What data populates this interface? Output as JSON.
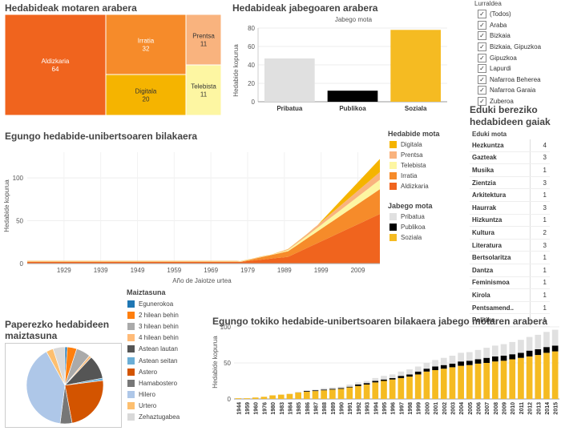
{
  "treemap": {
    "title": "Hedabideak motaren arabera",
    "cells": [
      {
        "label": "Aldizkaria",
        "value": 64,
        "color": "#f0641e"
      },
      {
        "label": "Irratia",
        "value": 32,
        "color": "#f68b2a"
      },
      {
        "label": "Digitala",
        "value": 20,
        "color": "#f5b400"
      },
      {
        "label": "Prentsa",
        "value": 11,
        "color": "#f9b37e"
      },
      {
        "label": "Telebista",
        "value": 11,
        "color": "#fdf6a2"
      }
    ]
  },
  "jabego_bar": {
    "title": "Hedabideak jabegoaren arabera",
    "subtitle": "Jabego mota",
    "ylabel": "Hedabide kopurua",
    "ylim": [
      0,
      80
    ],
    "ticks": [
      0,
      20,
      40,
      60,
      80
    ],
    "bars": [
      {
        "label": "Pribatua",
        "value": 47,
        "color": "#e0e0e0"
      },
      {
        "label": "Publikoa",
        "value": 12,
        "color": "#000000"
      },
      {
        "label": "Soziala",
        "value": 78,
        "color": "#f5bb22"
      }
    ]
  },
  "filter": {
    "title": "Lurraldea",
    "items": [
      "(Todos)",
      "Araba",
      "Bizkaia",
      "Bizkaia, Gipuzkoa",
      "Gipuzkoa",
      "Lapurdi",
      "Nafarroa Beherea",
      "Nafarroa Garaia",
      "Zuberoa"
    ],
    "check_mark": "✓"
  },
  "eduki": {
    "title_line1": "Eduki bereziko",
    "title_line2": "hedabideen gaiak",
    "column_header": "Eduki mota",
    "rows": [
      {
        "name": "Hezkuntza",
        "value": "4"
      },
      {
        "name": "Gazteak",
        "value": "3"
      },
      {
        "name": "Musika",
        "value": "1"
      },
      {
        "name": "Zientzia",
        "value": "3"
      },
      {
        "name": "Arkitektura",
        "value": "1"
      },
      {
        "name": "Haurrak",
        "value": "3"
      },
      {
        "name": "Hizkuntza",
        "value": "1"
      },
      {
        "name": "Kultura",
        "value": "2"
      },
      {
        "name": "Literatura",
        "value": "3"
      },
      {
        "name": "Bertsolaritza",
        "value": "1"
      },
      {
        "name": "Dantza",
        "value": "1"
      },
      {
        "name": "Feminismoa",
        "value": "1"
      },
      {
        "name": "Kirola",
        "value": "1"
      },
      {
        "name": "Pentsamend..",
        "value": "1"
      },
      {
        "name": "Politika",
        "value": "1"
      }
    ]
  },
  "evolution": {
    "title": "Egungo hedabide-unibertsoaren bilakaera",
    "ylabel": "Hedabide kopurua",
    "xlabel": "Año de Jaiotze urtea",
    "xticks": [
      "1929",
      "1939",
      "1949",
      "1959",
      "1969",
      "1979",
      "1989",
      "1999",
      "2009"
    ],
    "yticks": [
      "0",
      "50",
      "100"
    ]
  },
  "legend_mota": {
    "title": "Hedabide mota",
    "items": [
      {
        "label": "Digitala",
        "color": "#f5b400"
      },
      {
        "label": "Prentsa",
        "color": "#f9b37e"
      },
      {
        "label": "Telebista",
        "color": "#fdf6a2"
      },
      {
        "label": "Irratia",
        "color": "#f68b2a"
      },
      {
        "label": "Aldizkaria",
        "color": "#f0641e"
      }
    ]
  },
  "legend_jabego": {
    "title": "Jabego mota",
    "items": [
      {
        "label": "Pribatua",
        "color": "#e0e0e0"
      },
      {
        "label": "Publikoa",
        "color": "#000000"
      },
      {
        "label": "Soziala",
        "color": "#f5bb22"
      }
    ]
  },
  "pie": {
    "title_line1": "Paperezko hedabideen",
    "title_line2": "maiztasuna",
    "legend_title": "Maiztasuna",
    "slices": [
      {
        "label": "Egunerokoa",
        "value": 1,
        "color": "#1f77b4"
      },
      {
        "label": "2 hilean behin",
        "value": 4,
        "color": "#ff7f0e"
      },
      {
        "label": "3 hilean behin",
        "value": 6,
        "color": "#aaaaaa"
      },
      {
        "label": "4 hilean behin",
        "value": 1,
        "color": "#ffbb78"
      },
      {
        "label": "Astean lautan",
        "value": 10,
        "color": "#555555"
      },
      {
        "label": "Astean seitan",
        "value": 1,
        "color": "#6baed6"
      },
      {
        "label": "Astero",
        "value": 24,
        "color": "#d35400"
      },
      {
        "label": "Hamabostero",
        "value": 5,
        "color": "#777777"
      },
      {
        "label": "Hilero",
        "value": 40,
        "color": "#aec7e8"
      },
      {
        "label": "Urtero",
        "value": 3,
        "color": "#fdbf6f"
      },
      {
        "label": "Zehaztugabea",
        "value": 5,
        "color": "#d9d9d9"
      }
    ]
  },
  "chart_data": {
    "type": "bar",
    "title": "Egungo tokiko hedabide-unibertsoaren bilakaera jabego motaren arabera",
    "ylabel": "Hedabide kopurua",
    "ylim": [
      0,
      100
    ],
    "yticks": [
      0,
      50,
      100
    ],
    "categories": [
      "1944",
      "1959",
      "1960",
      "1976",
      "1980",
      "1983",
      "1984",
      "1985",
      "1986",
      "1987",
      "1988",
      "1989",
      "1990",
      "1991",
      "1992",
      "1993",
      "1994",
      "1995",
      "1996",
      "1997",
      "1998",
      "1999",
      "2000",
      "2001",
      "2002",
      "2003",
      "2004",
      "2005",
      "2006",
      "2007",
      "2008",
      "2009",
      "2010",
      "2011",
      "2012",
      "2013",
      "2014",
      "2015"
    ],
    "series": [
      {
        "name": "Soziala",
        "color": "#f5bb22",
        "values": [
          1,
          1,
          2,
          3,
          5,
          6,
          7,
          9,
          10,
          11,
          12,
          13,
          14,
          16,
          18,
          20,
          23,
          25,
          27,
          29,
          31,
          34,
          38,
          40,
          42,
          44,
          46,
          47,
          49,
          50,
          52,
          53,
          55,
          57,
          59,
          61,
          64,
          66
        ]
      },
      {
        "name": "Publikoa",
        "color": "#000000",
        "values": [
          0,
          0,
          0,
          0,
          0,
          0,
          0,
          0,
          1,
          1,
          1,
          1,
          1,
          1,
          2,
          2,
          2,
          2,
          2,
          3,
          3,
          4,
          4,
          5,
          5,
          5,
          6,
          6,
          6,
          7,
          7,
          7,
          7,
          7,
          8,
          8,
          8,
          8
        ]
      },
      {
        "name": "Pribatua",
        "color": "#e0e0e0",
        "values": [
          0,
          0,
          0,
          0,
          0,
          0,
          0,
          1,
          1,
          1,
          2,
          2,
          2,
          3,
          3,
          3,
          4,
          5,
          5,
          6,
          7,
          7,
          8,
          9,
          10,
          11,
          12,
          12,
          13,
          14,
          15,
          16,
          17,
          18,
          19,
          20,
          21,
          22
        ]
      }
    ]
  }
}
